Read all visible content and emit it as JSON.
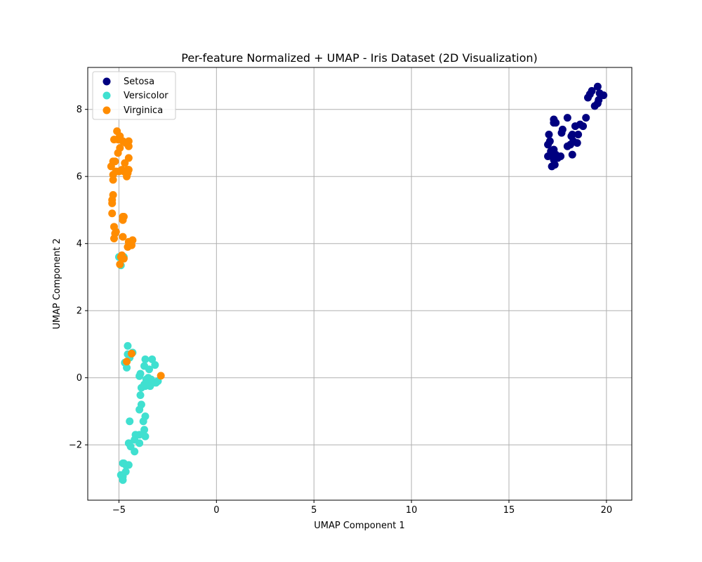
{
  "chart_data": {
    "type": "scatter",
    "title": "Per-feature Normalized + UMAP - Iris Dataset (2D Visualization)",
    "xlabel": "UMAP Component 1",
    "ylabel": "UMAP Component 2",
    "xlim": [
      -6.6,
      21.3
    ],
    "ylim": [
      -3.65,
      9.25
    ],
    "xticks": [
      -5,
      0,
      5,
      10,
      15,
      20
    ],
    "yticks": [
      -2,
      0,
      2,
      4,
      6,
      8
    ],
    "xtick_labels": [
      "−5",
      "0",
      "5",
      "10",
      "15",
      "20"
    ],
    "ytick_labels": [
      "−2",
      "0",
      "2",
      "4",
      "6",
      "8"
    ],
    "grid": true,
    "legend": "top-left",
    "series": [
      {
        "name": "Setosa",
        "color": "#000080",
        "points": [
          [
            19.55,
            8.68
          ],
          [
            19.25,
            8.55
          ],
          [
            19.85,
            8.42
          ],
          [
            19.65,
            8.48
          ],
          [
            19.05,
            8.35
          ],
          [
            19.15,
            8.45
          ],
          [
            19.4,
            8.1
          ],
          [
            19.55,
            8.18
          ],
          [
            19.6,
            8.28
          ],
          [
            18.95,
            7.75
          ],
          [
            18.65,
            7.55
          ],
          [
            18.8,
            7.5
          ],
          [
            18.4,
            7.5
          ],
          [
            18.25,
            7.25
          ],
          [
            18.55,
            7.25
          ],
          [
            18.3,
            7.05
          ],
          [
            18.5,
            7.0
          ],
          [
            18.0,
            7.75
          ],
          [
            17.75,
            7.4
          ],
          [
            17.7,
            7.3
          ],
          [
            17.3,
            7.7
          ],
          [
            17.4,
            7.6
          ],
          [
            17.05,
            7.25
          ],
          [
            17.0,
            6.95
          ],
          [
            17.3,
            6.8
          ],
          [
            17.25,
            6.6
          ],
          [
            17.65,
            6.6
          ],
          [
            17.5,
            6.55
          ],
          [
            17.2,
            6.3
          ],
          [
            17.35,
            6.35
          ],
          [
            17.0,
            6.6
          ],
          [
            18.0,
            6.9
          ],
          [
            18.15,
            6.95
          ],
          [
            18.25,
            6.65
          ],
          [
            17.3,
            6.5
          ],
          [
            17.15,
            6.75
          ],
          [
            17.4,
            6.65
          ],
          [
            18.2,
            7.2
          ],
          [
            17.3,
            7.6
          ],
          [
            17.1,
            7.05
          ]
        ]
      },
      {
        "name": "Versicolor",
        "color": "#40E0D0",
        "points": [
          [
            -4.55,
            0.95
          ],
          [
            -4.45,
            0.6
          ],
          [
            -4.6,
            0.3
          ],
          [
            -3.65,
            0.55
          ],
          [
            -3.3,
            0.55
          ],
          [
            -3.7,
            0.35
          ],
          [
            -3.15,
            0.38
          ],
          [
            -3.45,
            0.25
          ],
          [
            -3.9,
            0.12
          ],
          [
            -3.95,
            0.05
          ],
          [
            -3.6,
            -0.05
          ],
          [
            -3.35,
            -0.05
          ],
          [
            -3.55,
            -0.15
          ],
          [
            -3.25,
            -0.15
          ],
          [
            -3.65,
            -0.25
          ],
          [
            -3.4,
            -0.25
          ],
          [
            -3.85,
            -0.3
          ],
          [
            -3.7,
            -0.2
          ],
          [
            -3.0,
            -0.1
          ],
          [
            -3.1,
            -0.15
          ],
          [
            -3.9,
            -0.52
          ],
          [
            -3.85,
            -0.8
          ],
          [
            -3.95,
            -0.95
          ],
          [
            -3.65,
            -1.15
          ],
          [
            -3.75,
            -1.3
          ],
          [
            -4.45,
            -1.3
          ],
          [
            -3.7,
            -1.55
          ],
          [
            -4.15,
            -1.7
          ],
          [
            -3.95,
            -1.7
          ],
          [
            -3.65,
            -1.75
          ],
          [
            -4.2,
            -1.85
          ],
          [
            -4.5,
            -1.95
          ],
          [
            -4.4,
            -2.05
          ],
          [
            -3.95,
            -1.95
          ],
          [
            -4.2,
            -2.2
          ],
          [
            -4.75,
            -2.55
          ],
          [
            -4.5,
            -2.6
          ],
          [
            -4.9,
            -2.9
          ],
          [
            -4.65,
            -2.8
          ],
          [
            -4.8,
            -2.95
          ],
          [
            -4.8,
            -3.05
          ],
          [
            -4.65,
            -2.6
          ],
          [
            -4.8,
            -2.55
          ],
          [
            -5.0,
            3.6
          ],
          [
            -4.9,
            3.35
          ],
          [
            -4.75,
            3.6
          ],
          [
            -4.55,
            0.7
          ],
          [
            -4.3,
            0.75
          ],
          [
            -4.7,
            0.45
          ],
          [
            -3.5,
            0.0
          ]
        ]
      },
      {
        "name": "Virginica",
        "color": "#FF8C00",
        "points": [
          [
            -5.1,
            7.35
          ],
          [
            -4.95,
            7.2
          ],
          [
            -5.05,
            7.1
          ],
          [
            -5.25,
            7.1
          ],
          [
            -4.8,
            7.05
          ],
          [
            -4.5,
            7.05
          ],
          [
            -4.5,
            6.9
          ],
          [
            -4.95,
            6.85
          ],
          [
            -5.05,
            6.7
          ],
          [
            -4.5,
            6.55
          ],
          [
            -5.2,
            6.45
          ],
          [
            -5.3,
            6.45
          ],
          [
            -4.7,
            6.4
          ],
          [
            -5.4,
            6.3
          ],
          [
            -4.85,
            6.2
          ],
          [
            -4.5,
            6.2
          ],
          [
            -4.55,
            6.1
          ],
          [
            -4.75,
            6.15
          ],
          [
            -5.15,
            6.15
          ],
          [
            -5.3,
            6.05
          ],
          [
            -4.6,
            6.0
          ],
          [
            -5.3,
            5.9
          ],
          [
            -5.3,
            5.45
          ],
          [
            -5.35,
            5.3
          ],
          [
            -5.35,
            5.2
          ],
          [
            -5.35,
            4.9
          ],
          [
            -4.75,
            4.8
          ],
          [
            -4.8,
            4.7
          ],
          [
            -5.25,
            4.5
          ],
          [
            -5.15,
            4.35
          ],
          [
            -5.25,
            4.15
          ],
          [
            -4.8,
            4.2
          ],
          [
            -4.3,
            4.1
          ],
          [
            -4.5,
            4.05
          ],
          [
            -4.35,
            3.95
          ],
          [
            -4.55,
            3.9
          ],
          [
            -4.85,
            3.65
          ],
          [
            -4.75,
            3.55
          ],
          [
            -4.95,
            3.38
          ],
          [
            -4.35,
            0.72
          ],
          [
            -4.6,
            0.48
          ],
          [
            -2.85,
            0.06
          ],
          [
            -4.9,
            3.6
          ],
          [
            -5.0,
            7.15
          ],
          [
            -4.55,
            6.2
          ],
          [
            -4.8,
            4.8
          ],
          [
            -5.2,
            4.3
          ],
          [
            -4.45,
            4.05
          ],
          [
            -5.0,
            6.15
          ],
          [
            -4.65,
            7.0
          ]
        ]
      }
    ]
  }
}
